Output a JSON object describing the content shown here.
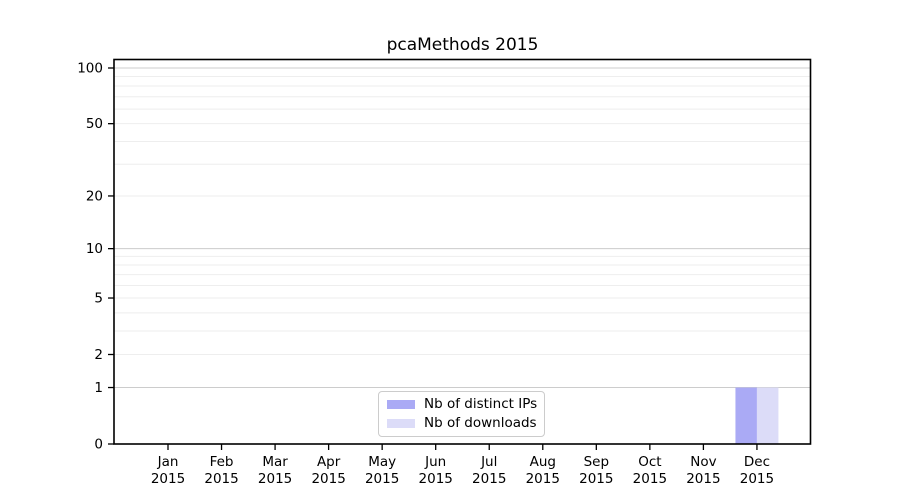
{
  "chart_data": {
    "type": "bar",
    "title": "pcaMethods 2015",
    "categories": [
      "Jan",
      "Feb",
      "Mar",
      "Apr",
      "May",
      "Jun",
      "Jul",
      "Aug",
      "Sep",
      "Oct",
      "Nov",
      "Dec"
    ],
    "year_label": "2015",
    "series": [
      {
        "name": "Nb of distinct IPs",
        "color": "#aaaaf5",
        "values": [
          0,
          0,
          0,
          0,
          0,
          0,
          0,
          0,
          0,
          0,
          0,
          1
        ]
      },
      {
        "name": "Nb of downloads",
        "color": "#dcdcf8",
        "values": [
          0,
          0,
          0,
          0,
          0,
          0,
          0,
          0,
          0,
          0,
          0,
          1
        ]
      }
    ],
    "xlabel": "",
    "ylabel": "",
    "yscale": "log1p",
    "yticks": [
      0,
      1,
      2,
      5,
      10,
      20,
      50,
      100
    ],
    "ylim": [
      0,
      110
    ],
    "grid": true,
    "grid_major_values": [
      1,
      10,
      100
    ],
    "grid_minor_values": [
      2,
      3,
      4,
      5,
      6,
      7,
      8,
      9,
      20,
      30,
      40,
      50,
      60,
      70,
      80,
      90
    ],
    "legend_position": "bottom-center-inside"
  },
  "colors": {
    "grid_major": "#cccccc",
    "grid_minor": "#eeeeee",
    "axis": "#000000"
  }
}
